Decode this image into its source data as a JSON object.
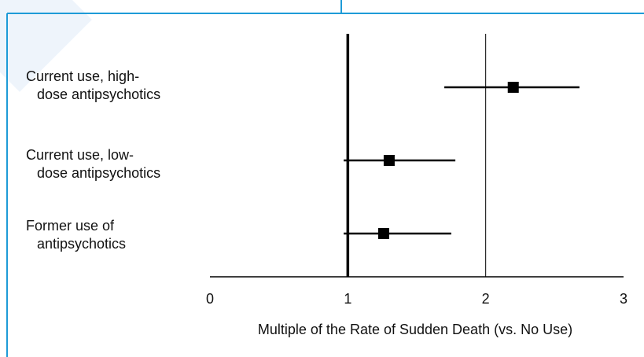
{
  "colors": {
    "frame": "#1e9bd7",
    "marker": "#000000",
    "reference_line": "#000000",
    "background": "#ffffff"
  },
  "chart_data": {
    "type": "scatter",
    "subtype": "forest-plot",
    "title": "",
    "xlabel": "Multiple of the Rate of Sudden Death (vs. No Use)",
    "ylabel": "",
    "xlim": [
      0,
      3
    ],
    "x_ticks": [
      "0",
      "1",
      "2",
      "3"
    ],
    "reference_lines": [
      1,
      2
    ],
    "grid": false,
    "legend": "none",
    "rows": [
      {
        "label_line1": "Current use, high-",
        "label_line2": "dose antipsychotics",
        "estimate": 2.2,
        "ci_low": 1.7,
        "ci_high": 2.68
      },
      {
        "label_line1": "Current use, low-",
        "label_line2": "dose antipsychotics",
        "estimate": 1.3,
        "ci_low": 0.97,
        "ci_high": 1.78
      },
      {
        "label_line1": "Former use of",
        "label_line2": "antipsychotics",
        "estimate": 1.26,
        "ci_low": 0.97,
        "ci_high": 1.75
      }
    ]
  }
}
